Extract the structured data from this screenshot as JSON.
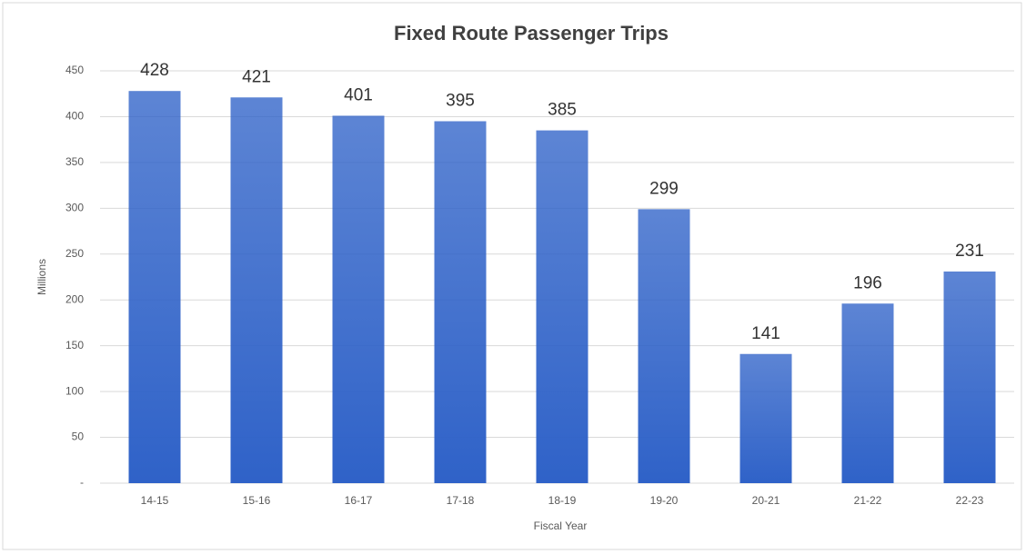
{
  "chart_data": {
    "type": "bar",
    "title": "Fixed Route Passenger Trips",
    "x_label": "Fiscal Year",
    "y_label": "Millions",
    "categories": [
      "14-15",
      "15-16",
      "16-17",
      "17-18",
      "18-19",
      "19-20",
      "20-21",
      "21-22",
      "22-23"
    ],
    "values": [
      428,
      421,
      401,
      395,
      385,
      299,
      141,
      196,
      231
    ],
    "color": "#2f62c8",
    "ylim": [
      0,
      450
    ],
    "yticks": [
      {
        "value": 0,
        "label": "-"
      },
      50,
      100,
      150,
      200,
      250,
      300,
      350,
      400,
      450
    ],
    "grid": true
  }
}
